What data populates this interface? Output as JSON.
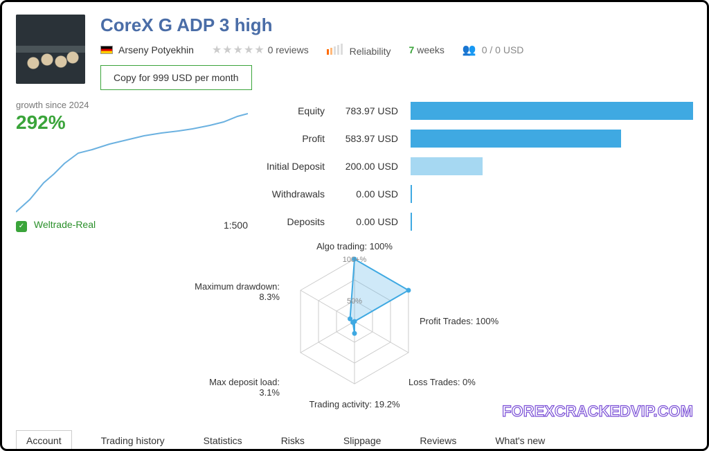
{
  "header": {
    "title": "CoreX G ADP 3 high",
    "author": "Arseny Potyekhin",
    "reviews_text": "0 reviews",
    "reliability_label": "Reliability",
    "weeks_value": "7",
    "weeks_label": "weeks",
    "subscribers_text": "0 / 0 USD",
    "copy_button_label": "Copy for 999 USD per month"
  },
  "growth": {
    "label": "growth since 2024",
    "value": "292%",
    "line_color": "#6bb1e0",
    "points": [
      [
        0,
        150
      ],
      [
        20,
        132
      ],
      [
        40,
        108
      ],
      [
        55,
        95
      ],
      [
        70,
        80
      ],
      [
        90,
        65
      ],
      [
        110,
        60
      ],
      [
        135,
        52
      ],
      [
        160,
        46
      ],
      [
        185,
        40
      ],
      [
        210,
        36
      ],
      [
        235,
        33
      ],
      [
        255,
        30
      ],
      [
        280,
        25
      ],
      [
        300,
        20
      ],
      [
        320,
        12
      ],
      [
        335,
        8
      ]
    ]
  },
  "broker": {
    "name": "Weltrade-Real",
    "leverage": "1:500"
  },
  "stats": {
    "max_bar_value": 783.97,
    "rows": [
      {
        "label": "Equity",
        "value": "783.97 USD",
        "num": 783.97,
        "color": "#3fa9e2"
      },
      {
        "label": "Profit",
        "value": "583.97 USD",
        "num": 583.97,
        "color": "#3fa9e2"
      },
      {
        "label": "Initial Deposit",
        "value": "200.00 USD",
        "num": 200.0,
        "color": "#a6d8f2"
      },
      {
        "label": "Withdrawals",
        "value": "0.00 USD",
        "num": 0.0,
        "color": "#3fa9e2"
      },
      {
        "label": "Deposits",
        "value": "0.00 USD",
        "num": 0.0,
        "color": "#3fa9e2"
      }
    ]
  },
  "radar": {
    "grid_color": "#cccccc",
    "line_color": "#3fa9e2",
    "fill_color": "rgba(63,169,226,0.25)",
    "center_label_50": "50%",
    "center_label_100": "100+%",
    "axes": [
      {
        "label": "Algo trading: 100%",
        "value": 100
      },
      {
        "label": "Profit Trades: 100%",
        "value": 100
      },
      {
        "label": "Loss Trades: 0%",
        "value": 0
      },
      {
        "label": "Trading activity: 19.2%",
        "value": 19.2
      },
      {
        "label": "Max deposit load: 3.1%",
        "value": 3.1
      },
      {
        "label": "Maximum drawdown: 8.3%",
        "value": 8.3
      }
    ]
  },
  "tabs": [
    {
      "label": "Account",
      "active": true
    },
    {
      "label": "Trading history",
      "active": false
    },
    {
      "label": "Statistics",
      "active": false
    },
    {
      "label": "Risks",
      "active": false
    },
    {
      "label": "Slippage",
      "active": false
    },
    {
      "label": "Reviews",
      "active": false
    },
    {
      "label": "What's new",
      "active": false
    }
  ],
  "watermark": "FOREXCRACKEDVIP.COM"
}
